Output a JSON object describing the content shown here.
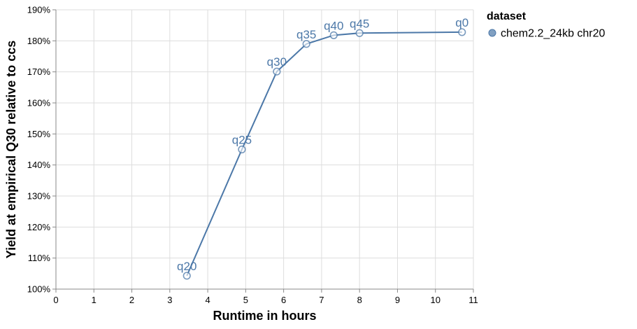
{
  "chart_data": {
    "type": "line",
    "xlabel": "Runtime in hours",
    "ylabel": "Yield at empirical Q30 relative to ccs",
    "xlim": [
      0,
      11
    ],
    "ylim": [
      1.0,
      1.9
    ],
    "x_ticks": [
      "0",
      "1",
      "2",
      "3",
      "4",
      "5",
      "6",
      "7",
      "8",
      "9",
      "10",
      "11"
    ],
    "y_ticks": [
      "100%",
      "110%",
      "120%",
      "130%",
      "140%",
      "150%",
      "160%",
      "170%",
      "180%",
      "190%"
    ],
    "grid": true,
    "legend": {
      "title": "dataset",
      "position": "right"
    },
    "series": [
      {
        "name": "chem2.2_24kb chr20",
        "color": "#4c78a8",
        "points": [
          {
            "label": "q20",
            "x": 3.45,
            "y": 1.043
          },
          {
            "label": "q25",
            "x": 4.9,
            "y": 1.45
          },
          {
            "label": "q30",
            "x": 5.82,
            "y": 1.701
          },
          {
            "label": "q35",
            "x": 6.6,
            "y": 1.79
          },
          {
            "label": "q40",
            "x": 7.32,
            "y": 1.818
          },
          {
            "label": "q45",
            "x": 8.0,
            "y": 1.825
          },
          {
            "label": "q0",
            "x": 10.7,
            "y": 1.828
          }
        ]
      }
    ]
  }
}
